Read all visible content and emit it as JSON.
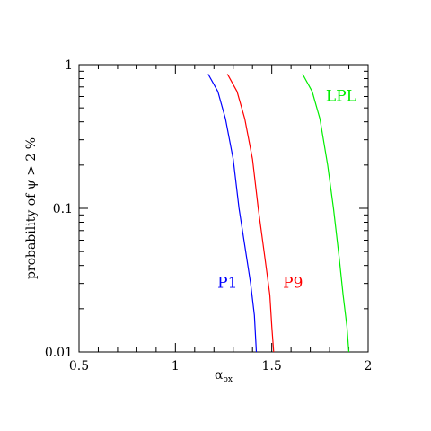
{
  "chart_data": {
    "type": "line",
    "title": "",
    "xlabel": "α",
    "xlabel_sub": "ox",
    "ylabel": "probability of ψ > 2 %",
    "xlim": [
      0.5,
      2
    ],
    "ylim": [
      0.01,
      1
    ],
    "yscale": "log",
    "grid": false,
    "x_ticks": [
      {
        "value": 0.5,
        "label": "0.5"
      },
      {
        "value": 1,
        "label": "1"
      },
      {
        "value": 1.5,
        "label": "1.5"
      },
      {
        "value": 2,
        "label": "2"
      }
    ],
    "y_ticks": [
      {
        "value": 0.01,
        "label": "0.01"
      },
      {
        "value": 0.1,
        "label": "0.1"
      },
      {
        "value": 1,
        "label": "1"
      }
    ],
    "series": [
      {
        "name": "P1",
        "color": "#0000ff",
        "points": [
          [
            1.17,
            0.86
          ],
          [
            1.22,
            0.65
          ],
          [
            1.26,
            0.42
          ],
          [
            1.3,
            0.22
          ],
          [
            1.33,
            0.1
          ],
          [
            1.36,
            0.055
          ],
          [
            1.39,
            0.03
          ],
          [
            1.41,
            0.018
          ],
          [
            1.42,
            0.01
          ]
        ]
      },
      {
        "name": "P9",
        "color": "#ff0000",
        "points": [
          [
            1.27,
            0.86
          ],
          [
            1.32,
            0.65
          ],
          [
            1.36,
            0.42
          ],
          [
            1.4,
            0.22
          ],
          [
            1.43,
            0.1
          ],
          [
            1.46,
            0.05
          ],
          [
            1.49,
            0.025
          ],
          [
            1.5,
            0.015
          ],
          [
            1.51,
            0.01
          ]
        ]
      },
      {
        "name": "LPL",
        "color": "#00ee00",
        "points": [
          [
            1.66,
            0.86
          ],
          [
            1.71,
            0.65
          ],
          [
            1.75,
            0.42
          ],
          [
            1.79,
            0.2
          ],
          [
            1.82,
            0.1
          ],
          [
            1.85,
            0.045
          ],
          [
            1.87,
            0.025
          ],
          [
            1.89,
            0.015
          ],
          [
            1.9,
            0.01
          ]
        ]
      }
    ]
  }
}
